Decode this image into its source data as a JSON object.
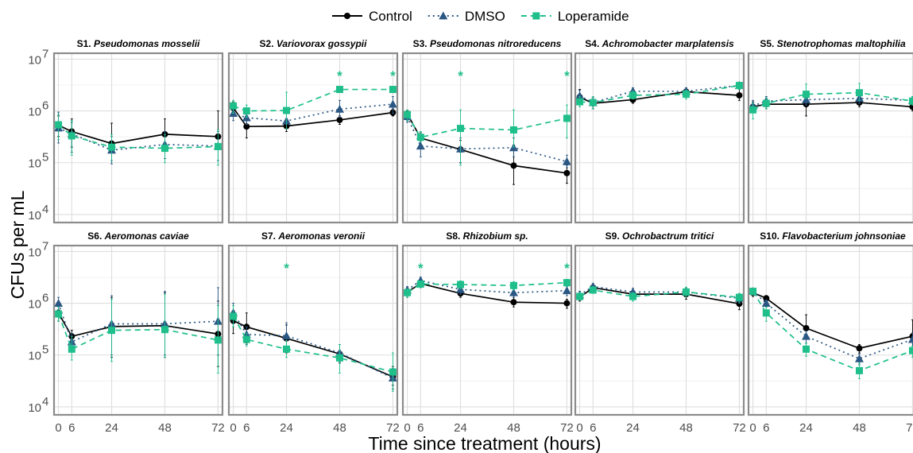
{
  "chart_data": {
    "type": "line",
    "xlabel": "Time since treatment (hours)",
    "ylabel": "CFUs per mL",
    "y_scale": "log10",
    "ylim": [
      7000,
      13000000
    ],
    "xlim": [
      -2,
      74
    ],
    "x_ticks": [
      0,
      6,
      24,
      48,
      72
    ],
    "y_ticks": [
      10000,
      100000,
      1000000,
      10000000
    ],
    "y_tick_labels": [
      {
        "base": "10",
        "exp": "4"
      },
      {
        "base": "10",
        "exp": "5"
      },
      {
        "base": "10",
        "exp": "6"
      },
      {
        "base": "10",
        "exp": "7"
      }
    ],
    "grid": true,
    "legend_position": "top",
    "significance_marker": "*",
    "x": [
      0,
      6,
      24,
      48,
      72
    ],
    "series_styles": [
      {
        "name": "Control",
        "color": "#000000",
        "marker": "circle",
        "dash": "solid"
      },
      {
        "name": "DMSO",
        "color": "#2a5783",
        "marker": "triangle",
        "dash": "dotted"
      },
      {
        "name": "Loperamide",
        "color": "#1fbf8c",
        "marker": "square",
        "dash": "dashed"
      }
    ],
    "panels": [
      {
        "label_prefix": "S1.",
        "label_species": "Pseudomonas mosselii",
        "series": [
          {
            "name": "Control",
            "values": [
              530000,
              400000,
              235000,
              355000,
              320000
            ],
            "err_low": [
              320000,
              200000,
              110000,
              200000,
              200000
            ],
            "err_high": [
              800000,
              700000,
              580000,
              700000,
              1000000
            ]
          },
          {
            "name": "DMSO",
            "values": [
              470000,
              360000,
              175000,
              225000,
              210000
            ],
            "err_low": [
              240000,
              160000,
              95000,
              120000,
              110000
            ],
            "err_high": [
              950000,
              600000,
              320000,
              400000,
              400000
            ]
          },
          {
            "name": "Loperamide",
            "values": [
              540000,
              330000,
              200000,
              190000,
              205000
            ],
            "err_low": [
              280000,
              140000,
              110000,
              100000,
              90000
            ],
            "err_high": [
              850000,
              650000,
              350000,
              350000,
              430000
            ]
          }
        ],
        "stars": []
      },
      {
        "label_prefix": "S2.",
        "label_species": "Variovorax gossypii",
        "series": [
          {
            "name": "Control",
            "values": [
              1150000,
              500000,
              510000,
              670000,
              930000
            ],
            "err_low": [
              800000,
              300000,
              400000,
              550000,
              800000
            ],
            "err_high": [
              1500000,
              750000,
              650000,
              800000,
              1100000
            ]
          },
          {
            "name": "DMSO",
            "values": [
              900000,
              740000,
              640000,
              1080000,
              1350000
            ],
            "err_low": [
              650000,
              550000,
              450000,
              750000,
              900000
            ],
            "err_high": [
              1300000,
              1000000,
              900000,
              1600000,
              1900000
            ]
          },
          {
            "name": "Loperamide",
            "values": [
              1250000,
              1000000,
              1020000,
              2600000,
              2600000
            ],
            "err_low": [
              900000,
              750000,
              450000,
              2300000,
              2300000
            ],
            "err_high": [
              1600000,
              1300000,
              2300000,
              2900000,
              2900000
            ]
          }
        ],
        "stars": [
          48,
          72
        ]
      },
      {
        "label_prefix": "S3.",
        "label_species": "Pseudomonas nitroreducens",
        "series": [
          {
            "name": "Control",
            "values": [
              880000,
              300000,
              180000,
              88000,
              63000
            ],
            "err_low": [
              650000,
              220000,
              100000,
              38000,
              40000
            ],
            "err_high": [
              1000000,
              380000,
              270000,
              220000,
              90000
            ]
          },
          {
            "name": "DMSO",
            "values": [
              780000,
              210000,
              185000,
              195000,
              105000
            ],
            "err_low": [
              600000,
              130000,
              100000,
              130000,
              80000
            ],
            "err_high": [
              950000,
              320000,
              300000,
              300000,
              140000
            ]
          },
          {
            "name": "Loperamide",
            "values": [
              850000,
              310000,
              460000,
              430000,
              720000
            ],
            "err_low": [
              650000,
              250000,
              90000,
              200000,
              300000
            ],
            "err_high": [
              1050000,
              400000,
              1050000,
              1050000,
              1300000
            ]
          }
        ],
        "stars": [
          24,
          72
        ]
      },
      {
        "label_prefix": "S4.",
        "label_species": "Achromobacter marplatensis",
        "series": [
          {
            "name": "Control",
            "values": [
              1850000,
              1400000,
              1650000,
              2350000,
              2000000
            ],
            "err_low": [
              1500000,
              1100000,
              1400000,
              2000000,
              1600000
            ],
            "err_high": [
              2600000,
              1800000,
              2000000,
              2800000,
              2600000
            ]
          },
          {
            "name": "DMSO",
            "values": [
              1950000,
              1450000,
              2400000,
              2400000,
              3100000
            ],
            "err_low": [
              1500000,
              1100000,
              2000000,
              2000000,
              2600000
            ],
            "err_high": [
              2500000,
              1800000,
              2800000,
              2800000,
              3600000
            ]
          },
          {
            "name": "Loperamide",
            "values": [
              1500000,
              1450000,
              2000000,
              2100000,
              3100000
            ],
            "err_low": [
              1200000,
              1100000,
              1700000,
              1700000,
              2600000
            ],
            "err_high": [
              1900000,
              1900000,
              2400000,
              2500000,
              3600000
            ]
          }
        ],
        "stars": []
      },
      {
        "label_prefix": "S5.",
        "label_species": "Stenotrophomas maltophilia",
        "series": [
          {
            "name": "Control",
            "values": [
              1200000,
              1350000,
              1350000,
              1450000,
              1200000
            ],
            "err_low": [
              950000,
              1100000,
              800000,
              1200000,
              1000000
            ],
            "err_high": [
              1500000,
              1600000,
              1800000,
              1700000,
              1400000
            ]
          },
          {
            "name": "DMSO",
            "values": [
              1250000,
              1550000,
              1650000,
              1750000,
              1600000
            ],
            "err_low": [
              950000,
              1200000,
              1300000,
              1400000,
              1300000
            ],
            "err_high": [
              1600000,
              1900000,
              2000000,
              2200000,
              1900000
            ]
          },
          {
            "name": "Loperamide",
            "values": [
              1050000,
              1400000,
              2100000,
              2250000,
              1550000
            ],
            "err_low": [
              700000,
              1100000,
              1700000,
              1600000,
              1300000
            ],
            "err_high": [
              1400000,
              1800000,
              3300000,
              3400000,
              1900000
            ]
          }
        ],
        "stars": []
      },
      {
        "label_prefix": "S6.",
        "label_species": "Aeromonas caviae",
        "series": [
          {
            "name": "Control",
            "values": [
              650000,
              230000,
              355000,
              370000,
              255000
            ],
            "err_low": [
              450000,
              160000,
              90000,
              90000,
              60000
            ],
            "err_high": [
              850000,
              300000,
              1300000,
              1600000,
              1100000
            ]
          },
          {
            "name": "DMSO",
            "values": [
              1000000,
              180000,
              400000,
              400000,
              450000
            ],
            "err_low": [
              750000,
              120000,
              100000,
              100000,
              100000
            ],
            "err_high": [
              1300000,
              260000,
              1400000,
              1700000,
              2000000
            ]
          },
          {
            "name": "Loperamide",
            "values": [
              620000,
              130000,
              300000,
              310000,
              195000
            ],
            "err_low": [
              450000,
              80000,
              75000,
              90000,
              45000
            ],
            "err_high": [
              850000,
              230000,
              1200000,
              1500000,
              900000
            ]
          }
        ],
        "stars": []
      },
      {
        "label_prefix": "S7.",
        "label_species": "Aeromonas veronii",
        "series": [
          {
            "name": "Control",
            "values": [
              460000,
              350000,
              210000,
              105000,
              38000
            ],
            "err_low": [
              260000,
              170000,
              110000,
              70000,
              26000
            ],
            "err_high": [
              700000,
              650000,
              380000,
              160000,
              60000
            ]
          },
          {
            "name": "DMSO",
            "values": [
              660000,
              250000,
              235000,
              110000,
              36000
            ],
            "err_low": [
              400000,
              160000,
              130000,
              75000,
              22000
            ],
            "err_high": [
              1000000,
              350000,
              420000,
              160000,
              55000
            ]
          },
          {
            "name": "Loperamide",
            "values": [
              560000,
              200000,
              130000,
              88000,
              47000
            ],
            "err_low": [
              350000,
              150000,
              90000,
              45000,
              20000
            ],
            "err_high": [
              900000,
              260000,
              190000,
              160000,
              110000
            ]
          }
        ],
        "stars": [
          24
        ]
      },
      {
        "label_prefix": "S8.",
        "label_species": "Rhizobium sp.",
        "series": [
          {
            "name": "Control",
            "values": [
              1650000,
              2400000,
              1550000,
              1050000,
              1000000
            ],
            "err_low": [
              1300000,
              2000000,
              1300000,
              850000,
              800000
            ],
            "err_high": [
              2000000,
              2800000,
              1800000,
              1300000,
              1200000
            ]
          },
          {
            "name": "DMSO",
            "values": [
              1800000,
              2750000,
              1850000,
              1600000,
              1750000
            ],
            "err_low": [
              1450000,
              2300000,
              1500000,
              1300000,
              1400000
            ],
            "err_high": [
              2100000,
              3200000,
              2200000,
              1900000,
              2100000
            ]
          },
          {
            "name": "Loperamide",
            "values": [
              1600000,
              2350000,
              2300000,
              2200000,
              2500000
            ],
            "err_low": [
              1300000,
              2000000,
              1900000,
              1800000,
              2100000
            ],
            "err_high": [
              1900000,
              2700000,
              2700000,
              2600000,
              2900000
            ]
          }
        ],
        "stars": [
          6,
          72
        ]
      },
      {
        "label_prefix": "S9.",
        "label_species": "Ochrobactrum tritici",
        "series": [
          {
            "name": "Control",
            "values": [
              1300000,
              2000000,
              1500000,
              1500000,
              980000
            ],
            "err_low": [
              1100000,
              1700000,
              1200000,
              1200000,
              750000
            ],
            "err_high": [
              1550000,
              2300000,
              1800000,
              1800000,
              1250000
            ]
          },
          {
            "name": "DMSO",
            "values": [
              1450000,
              2100000,
              1650000,
              1650000,
              1250000
            ],
            "err_low": [
              1200000,
              1800000,
              1350000,
              1350000,
              1000000
            ],
            "err_high": [
              1700000,
              2400000,
              1950000,
              1950000,
              1500000
            ]
          },
          {
            "name": "Loperamide",
            "values": [
              1350000,
              1800000,
              1350000,
              1650000,
              1300000
            ],
            "err_low": [
              1150000,
              1550000,
              1100000,
              1350000,
              1050000
            ],
            "err_high": [
              1600000,
              2100000,
              1600000,
              2050000,
              1550000
            ]
          }
        ],
        "stars": []
      },
      {
        "label_prefix": "S10.",
        "label_species": "Flavobacterium johnsoniae",
        "series": [
          {
            "name": "Control",
            "values": [
              1600000,
              1250000,
              330000,
              135000,
              230000
            ],
            "err_low": [
              1350000,
              1100000,
              220000,
              110000,
              110000
            ],
            "err_high": [
              1850000,
              1400000,
              600000,
              160000,
              480000
            ]
          },
          {
            "name": "DMSO",
            "values": [
              1700000,
              1000000,
              230000,
              85000,
              200000
            ],
            "err_low": [
              1450000,
              850000,
              170000,
              65000,
              130000
            ],
            "err_high": [
              1950000,
              1150000,
              290000,
              105000,
              270000
            ]
          },
          {
            "name": "Loperamide",
            "values": [
              1700000,
              650000,
              130000,
              50000,
              122000
            ],
            "err_low": [
              1450000,
              450000,
              95000,
              35000,
              90000
            ],
            "err_high": [
              1950000,
              850000,
              170000,
              70000,
              150000
            ]
          }
        ],
        "stars": []
      }
    ]
  }
}
